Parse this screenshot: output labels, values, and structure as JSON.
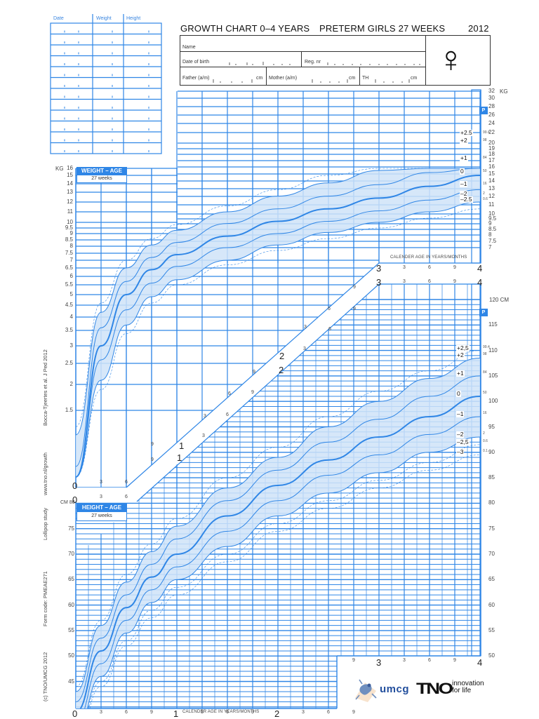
{
  "record_table": {
    "headers": [
      "Date",
      "Weight",
      "Height"
    ],
    "row_count": 12
  },
  "header": {
    "title_left": "GROWTH CHART 0–4 YEARS",
    "title_mid": "PRETERM GIRLS 27 WEEKS",
    "title_year": "2012",
    "fields": {
      "name": "Name",
      "date_of_birth": "Date of birth",
      "reg_nr": "Reg. nr",
      "father": "Father (a/m)",
      "mother": "Mother (a/m)",
      "th": "TH",
      "cm1": "cm",
      "cm2": "cm",
      "cm3": "cm"
    },
    "gender_symbol": "♀"
  },
  "side_text": {
    "citation": "Bocca-Tjeertes et al. J Ped 2012",
    "website": "www.tno.nl/growth",
    "study": "Lollipop study",
    "form_code": "Form code: PMEAE271",
    "copyright": "(c) TNO/UMCG 2012"
  },
  "weight_chart": {
    "banner": "WEIGHT – AGE",
    "subtitle": "27 weeks",
    "unit": "KG",
    "p_label": "P",
    "left_ticks": [
      "16",
      "15",
      "14",
      "13",
      "12",
      "11",
      "10",
      "9.5",
      "9",
      "8.5",
      "8",
      "7.5",
      "7",
      "6.5",
      "6",
      "5.5",
      "5",
      "4.5",
      "4",
      "3.5",
      "3",
      "2.5",
      "2",
      "1.5"
    ],
    "right_ticks": [
      "32",
      "30",
      "28",
      "26",
      "24",
      "22",
      "20",
      "19",
      "18",
      "17",
      "16",
      "15",
      "14",
      "13",
      "12",
      "11",
      "10",
      "9.5",
      "9",
      "8.5",
      "8",
      "7.5",
      "7"
    ],
    "sd_labels": [
      "+2.5",
      "+2",
      "+1",
      "0",
      "–1",
      "–2",
      "–2.5"
    ],
    "percentiles": [
      "99.4",
      "98",
      "84",
      "50",
      "16",
      "2",
      "0.6"
    ],
    "axis_caption": "CALENDER AGE IN YEARS/MONTHS"
  },
  "height_chart": {
    "banner": "HEIGHT – AGE",
    "subtitle": "27 weeks",
    "unit_left": "CM 80",
    "unit_right": "120 CM",
    "p_label": "P",
    "left_ticks": [
      "75",
      "70",
      "65",
      "60",
      "55",
      "50",
      "45"
    ],
    "right_ticks": [
      "115",
      "110",
      "105",
      "100",
      "95",
      "90",
      "85",
      "80",
      "75",
      "70",
      "65",
      "60",
      "55",
      "50"
    ],
    "sd_labels": [
      "+2,5",
      "+2",
      "+1",
      "0",
      "–1",
      "–2",
      "–2,5",
      "–3"
    ],
    "percentiles": [
      "99.4",
      "98",
      "84",
      "50",
      "16",
      "2",
      "0.6",
      "0.1"
    ],
    "axis_caption": "CALENDER AGE IN YEARS/MONTHS"
  },
  "age_axis": {
    "years": [
      "0",
      "1",
      "2",
      "3",
      "4"
    ],
    "months": [
      "3",
      "6",
      "9"
    ]
  },
  "logos": {
    "umcg": "umcg",
    "tno": "TNO",
    "tno_tagline_1": "innovation",
    "tno_tagline_2": "for life"
  },
  "colors": {
    "grid": "#2f86e6",
    "band": "#cfe3f8",
    "banner": "#2f86e6"
  },
  "chart_data": [
    {
      "type": "line",
      "title": "WEIGHT – AGE (Preterm girls 27 weeks)",
      "xlabel": "Calender age in years/months",
      "ylabel": "KG",
      "x": [
        0,
        0.25,
        0.5,
        0.75,
        1,
        1.5,
        2,
        2.5,
        3,
        3.5,
        4
      ],
      "series": [
        {
          "name": "+2.5 SD (P99.4)",
          "values": [
            1.3,
            4.6,
            7.0,
            8.6,
            9.8,
            11.6,
            13.3,
            15.0,
            16.8,
            19.0,
            21.5
          ]
        },
        {
          "name": "+2 SD (P98)",
          "values": [
            1.2,
            4.2,
            6.5,
            8.1,
            9.3,
            11.0,
            12.6,
            14.1,
            15.7,
            17.7,
            20.0
          ]
        },
        {
          "name": "+1 SD (P84)",
          "values": [
            1.05,
            3.6,
            5.7,
            7.2,
            8.3,
            9.9,
            11.3,
            12.6,
            13.9,
            15.4,
            17.0
          ]
        },
        {
          "name": "0 SD (P50)",
          "values": [
            0.9,
            3.0,
            5.0,
            6.4,
            7.4,
            8.8,
            10.1,
            11.3,
            12.4,
            13.7,
            15.0
          ]
        },
        {
          "name": "-1 SD (P16)",
          "values": [
            0.8,
            2.6,
            4.3,
            5.6,
            6.6,
            7.9,
            9.0,
            10.1,
            11.1,
            12.2,
            13.3
          ]
        },
        {
          "name": "-2 SD (P2)",
          "values": [
            0.7,
            2.1,
            3.7,
            4.9,
            5.8,
            7.0,
            8.1,
            9.1,
            10.0,
            11.0,
            12.0
          ]
        },
        {
          "name": "-2.5 SD (P0.6)",
          "values": [
            0.65,
            1.9,
            3.4,
            4.6,
            5.5,
            6.7,
            7.7,
            8.6,
            9.5,
            10.4,
            11.3
          ]
        }
      ],
      "ylim": [
        1,
        32
      ]
    },
    {
      "type": "line",
      "title": "HEIGHT – AGE (Preterm girls 27 weeks)",
      "xlabel": "Calender age in years/months",
      "ylabel": "CM",
      "x": [
        0,
        0.25,
        0.5,
        0.75,
        1,
        1.5,
        2,
        2.5,
        3,
        3.5,
        4
      ],
      "series": [
        {
          "name": "+2.5 SD (P99.4)",
          "values": [
            44,
            57,
            66,
            72,
            77,
            85,
            91,
            97,
            102,
            106,
            110
          ]
        },
        {
          "name": "+2 SD (P98)",
          "values": [
            43,
            56,
            64.5,
            70.5,
            75.5,
            83,
            89,
            95,
            100,
            104.5,
            108.5
          ]
        },
        {
          "name": "+1 SD (P84)",
          "values": [
            41,
            53.5,
            62,
            68,
            73,
            80.5,
            86.5,
            92,
            96.5,
            101,
            105
          ]
        },
        {
          "name": "0 SD (P50)",
          "values": [
            39,
            51,
            59.5,
            65.5,
            70,
            77.5,
            83.5,
            88.5,
            93,
            97,
            101
          ]
        },
        {
          "name": "-1 SD (P16)",
          "values": [
            37,
            48.5,
            57,
            63,
            67.5,
            74.5,
            80.5,
            85.5,
            89.5,
            93.5,
            97
          ]
        },
        {
          "name": "-2 SD (P2)",
          "values": [
            35,
            46,
            54.5,
            60.5,
            65,
            71.5,
            77.5,
            82,
            86,
            90,
            93
          ]
        },
        {
          "name": "-2.5 SD (P0.6)",
          "values": [
            34,
            45,
            53,
            59,
            63.5,
            70,
            76,
            80.5,
            84.5,
            88,
            91.5
          ]
        },
        {
          "name": "-3 SD (P0.1)",
          "values": [
            33,
            44,
            52,
            57.5,
            62,
            68.5,
            74.5,
            79,
            83,
            86.5,
            89.5
          ]
        }
      ],
      "ylim": [
        40,
        120
      ]
    }
  ]
}
